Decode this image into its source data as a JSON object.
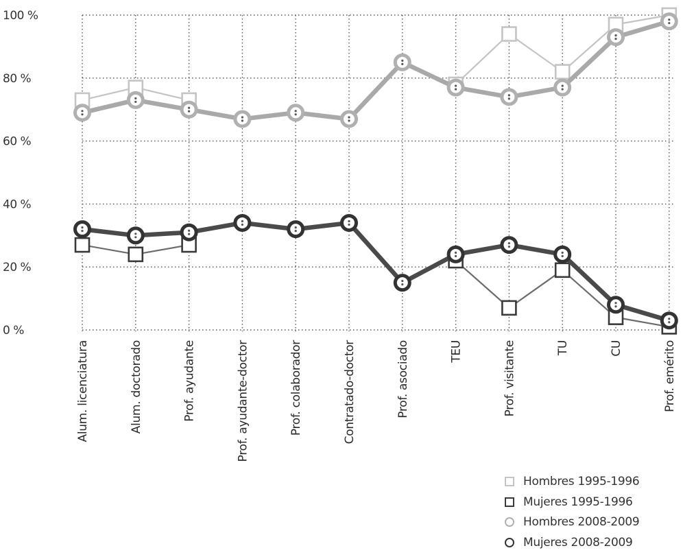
{
  "chart_data": {
    "type": "line",
    "categories": [
      "Alum. licenciatura",
      "Alum. doctorado",
      "Prof. ayudante",
      "Prof. ayudante-doctor",
      "Prof. colaborador",
      "Contratado-doctor",
      "Prof. asociado",
      "TEU",
      "Prof. visitante",
      "TU",
      "CU",
      "Prof. emérito"
    ],
    "y_ticks": [
      "0 %",
      "20 %",
      "40 %",
      "60 %",
      "80 %",
      "100 %"
    ],
    "ylim": [
      0,
      100
    ],
    "grid": true,
    "legend_position": "bottom-right",
    "series": [
      {
        "name": "Hombres 1995-1996",
        "marker": "square",
        "color": "#c4c4c4",
        "values": [
          73,
          77,
          73,
          null,
          null,
          null,
          null,
          78,
          94,
          82,
          97,
          100
        ]
      },
      {
        "name": "Mujeres 1995-1996",
        "marker": "square",
        "color": "#6c6c6c",
        "values": [
          27,
          24,
          27,
          null,
          null,
          null,
          null,
          22,
          7,
          19,
          4,
          1
        ]
      },
      {
        "name": "Hombres 2008-2009",
        "marker": "circle",
        "color": "#a9a9a9",
        "values": [
          69,
          73,
          70,
          67,
          69,
          67,
          85,
          77,
          74,
          77,
          93,
          98
        ]
      },
      {
        "name": "Mujeres 2008-2009",
        "marker": "circle",
        "color": "#4a4a4a",
        "values": [
          32,
          30,
          31,
          34,
          32,
          34,
          15,
          24,
          27,
          24,
          8,
          3
        ]
      }
    ]
  }
}
